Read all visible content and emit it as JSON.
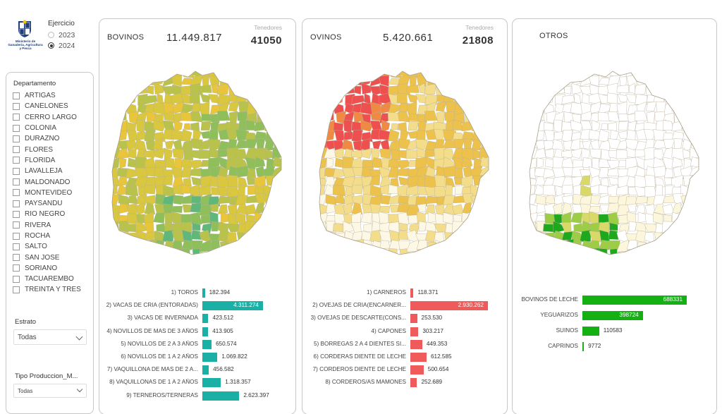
{
  "logo": {
    "text": "Ministerio de Ganadería, Agricultura y Pesca",
    "colors": {
      "primary": "#1f3f7a",
      "accent": "#f5c400"
    }
  },
  "ejercicio": {
    "title": "Ejercicio",
    "options": [
      {
        "label": "2023",
        "selected": false
      },
      {
        "label": "2024",
        "selected": true
      }
    ]
  },
  "departamento": {
    "title": "Departamento",
    "items": [
      "ARTIGAS",
      "CANELONES",
      "CERRO LARGO",
      "COLONIA",
      "DURAZNO",
      "FLORES",
      "FLORIDA",
      "LAVALLEJA",
      "MALDONADO",
      "MONTEVIDEO",
      "PAYSANDU",
      "RIO NEGRO",
      "RIVERA",
      "ROCHA",
      "SALTO",
      "SAN JOSE",
      "SORIANO",
      "TACUAREMBO",
      "TREINTA Y TRES"
    ]
  },
  "estrato": {
    "label": "Estrato",
    "value": "Todas"
  },
  "tipo": {
    "label": "Tipo Produccion_M...",
    "value": "Todas"
  },
  "bovinos": {
    "title": "BOVINOS",
    "total": "11.449.817",
    "tenedores_label": "Tenedores",
    "tenedores": "41050",
    "bar_color": "#1ab0a6",
    "map_palette": [
      "#e8c53a",
      "#d9c73f",
      "#b9c24a",
      "#8fbf5a",
      "#5fb77a"
    ],
    "bars": [
      {
        "label": "1) TOROS",
        "value": 182394,
        "display": "182.394"
      },
      {
        "label": "2) VACAS DE CRIA (ENTORADAS)",
        "value": 4311274,
        "display": "4.311.274"
      },
      {
        "label": "3) VACAS DE INVERNADA",
        "value": 423512,
        "display": "423.512"
      },
      {
        "label": "4) NOVILLOS DE MAS DE 3 AÑOS",
        "value": 413905,
        "display": "413.905"
      },
      {
        "label": "5) NOVILLOS DE 2 A 3 AÑOS",
        "value": 650574,
        "display": "650.574"
      },
      {
        "label": "6) NOVILLOS DE 1 A 2 AÑOS",
        "value": 1069822,
        "display": "1.069.822"
      },
      {
        "label": "7) VAQUILLONA DE MAS DE 2 A...",
        "value": 456582,
        "display": "456.582"
      },
      {
        "label": "8) VAQUILLONAS DE 1 A 2 AÑOS",
        "value": 1318357,
        "display": "1.318.357"
      },
      {
        "label": "9) TERNEROS/TERNERAS",
        "value": 2623397,
        "display": "2.623.397"
      }
    ]
  },
  "ovinos": {
    "title": "OVINOS",
    "total": "5.420.661",
    "tenedores_label": "Tenedores",
    "tenedores": "21808",
    "bar_color": "#ef5b5b",
    "map_palette": [
      "#fdf8e6",
      "#f3dd8a",
      "#ecc24d",
      "#ef8a45",
      "#ee4f4f"
    ],
    "bars": [
      {
        "label": "1) CARNEROS",
        "value": 118371,
        "display": "118.371"
      },
      {
        "label": "2) OVEJAS DE CRIA(ENCARNER...",
        "value": 2930262,
        "display": "2.930.262"
      },
      {
        "label": "3) OVEJAS DE DESCARTE(CONS...",
        "value": 253530,
        "display": "253.530"
      },
      {
        "label": "4) CAPONES",
        "value": 303217,
        "display": "303.217"
      },
      {
        "label": "5) BORREGAS 2 A 4 DIENTES SI...",
        "value": 449353,
        "display": "449.353"
      },
      {
        "label": "6) CORDERAS DIENTE DE LECHE",
        "value": 612585,
        "display": "612.585"
      },
      {
        "label": "7) CORDEROS DIENTE DE LECHE",
        "value": 500654,
        "display": "500.654"
      },
      {
        "label": "8) CORDEROS/AS MAMONES",
        "value": 252689,
        "display": "252.689"
      }
    ]
  },
  "otros": {
    "title": "OTROS",
    "bar_color": "#14b014",
    "map_palette": [
      "#ffffff",
      "#fbf6dc",
      "#d9d96a",
      "#9ccd45",
      "#1ea81e"
    ],
    "bars": [
      {
        "label": "BOVINOS DE LECHE",
        "value": 688331,
        "display": "688331"
      },
      {
        "label": "YEGUARIZOS",
        "value": 398724,
        "display": "398724"
      },
      {
        "label": "SUINOS",
        "value": 110583,
        "display": "110583"
      },
      {
        "label": "CAPRINOS",
        "value": 9772,
        "display": "9772"
      }
    ]
  }
}
